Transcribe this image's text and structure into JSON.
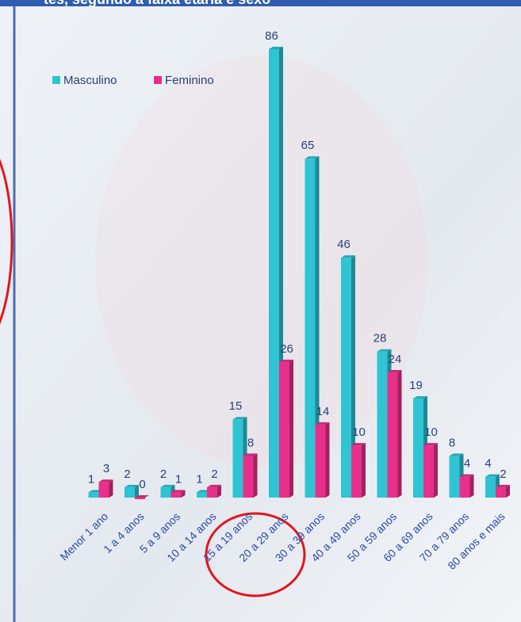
{
  "chart_data": {
    "type": "bar",
    "title": "tes, segundo a faixa etária e sexo",
    "categories": [
      "Menor 1 ano",
      "1 a 4 anos",
      "5 a 9 anos",
      "10 a 14 anos",
      "15 a 19 anos",
      "20 a 29 anos",
      "30 a 39 anos",
      "40 a 49 anos",
      "50 a 59 anos",
      "60 a 69 anos",
      "70 a 79 anos",
      "80 anos e mais"
    ],
    "series": [
      {
        "name": "Masculino",
        "color": "#2ec4d4",
        "values": [
          1,
          2,
          2,
          1,
          15,
          86,
          65,
          46,
          28,
          19,
          8,
          4
        ]
      },
      {
        "name": "Feminino",
        "color": "#e8308a",
        "values": [
          3,
          0,
          1,
          2,
          8,
          26,
          14,
          10,
          24,
          10,
          4,
          2
        ]
      }
    ]
  }
}
